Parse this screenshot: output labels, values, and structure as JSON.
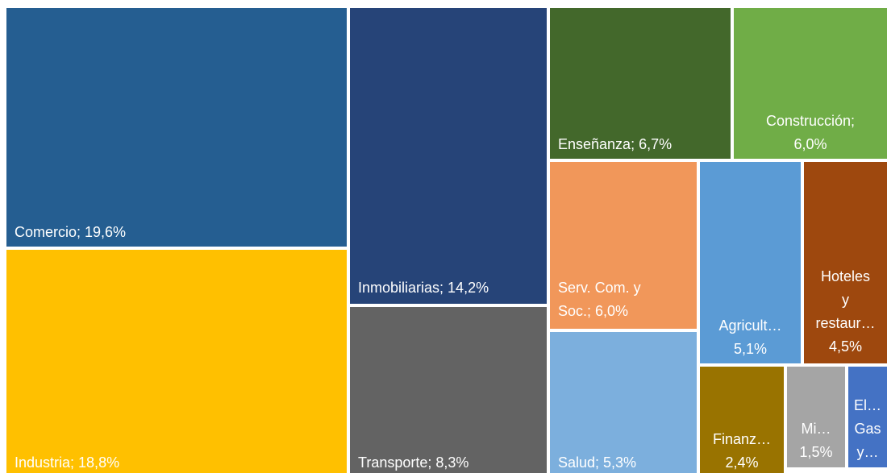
{
  "chart_data": {
    "type": "treemap",
    "labels": [
      [
        "Comercio; 19,6%"
      ],
      [
        "Industria; 18,8%"
      ],
      [
        "Inmobiliarias; 14,2%"
      ],
      [
        "Transporte; 8,3%"
      ],
      [
        "Enseñanza; 6,7%"
      ],
      [
        "Construcción;",
        "6,0%"
      ],
      [
        "Serv. Com. y",
        "Soc.; 6,0%"
      ],
      [
        "Salud; 5,3%"
      ],
      [
        "Agricult…",
        "5,1%"
      ],
      [
        "Hoteles",
        "y",
        "restaur…",
        "4,5%"
      ],
      [
        "Finanz…",
        "2,4%"
      ],
      [
        "Mi…",
        "1,5%"
      ],
      [
        "El…",
        "Gas",
        "y…"
      ]
    ],
    "values": [
      19.6,
      18.8,
      14.2,
      8.3,
      6.7,
      6.0,
      6.0,
      5.3,
      5.1,
      4.5,
      2.4,
      1.5,
      1.0
    ],
    "colors": [
      "#255e91",
      "#ffc000",
      "#264478",
      "#636363",
      "#43682b",
      "#70ad47",
      "#f1975a",
      "#7cafdd",
      "#5b9bd5",
      "#9e480e",
      "#997300",
      "#a5a5a5",
      "#4472c4"
    ]
  }
}
